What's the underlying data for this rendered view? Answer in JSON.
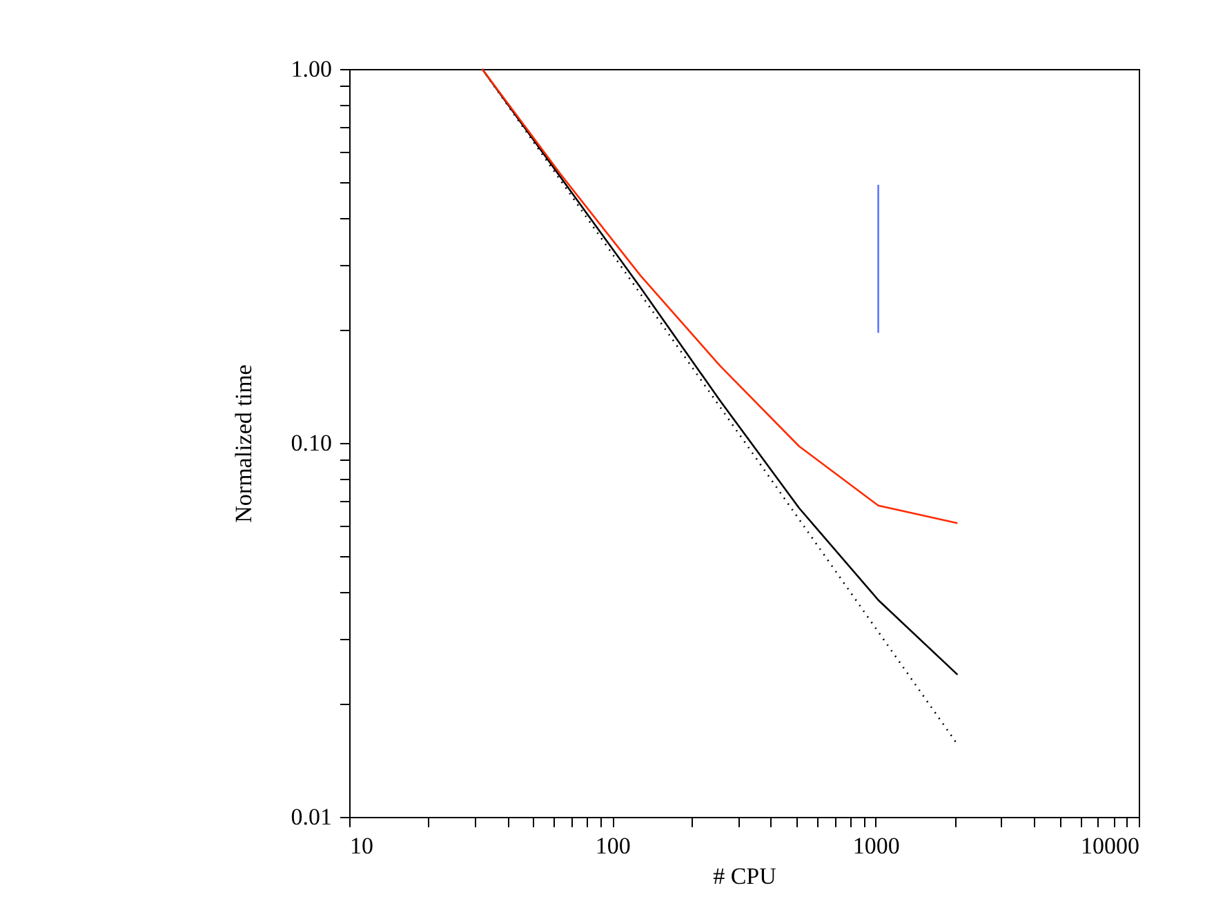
{
  "chart_data": {
    "type": "line",
    "xlabel": "# CPU",
    "ylabel": "Normalized time",
    "log": "xy",
    "grid": false,
    "marker": "none",
    "xlim": [
      10,
      10000
    ],
    "ylim": [
      0.01,
      1
    ],
    "xticks": [
      10,
      {
        "value": 20,
        "label": null
      },
      {
        "value": 30,
        "label": null
      },
      {
        "value": 40,
        "label": null
      },
      {
        "value": 50,
        "label": null
      },
      {
        "value": 60,
        "label": null
      },
      {
        "value": 70,
        "label": null
      },
      {
        "value": 80,
        "label": null
      },
      {
        "value": 90,
        "label": null
      },
      100,
      {
        "value": 200,
        "label": null
      },
      {
        "value": 300,
        "label": null
      },
      {
        "value": 400,
        "label": null
      },
      {
        "value": 500,
        "label": null
      },
      {
        "value": 600,
        "label": null
      },
      {
        "value": 700,
        "label": null
      },
      {
        "value": 800,
        "label": null
      },
      {
        "value": 900,
        "label": null
      },
      1000,
      {
        "value": 2000,
        "label": null
      },
      {
        "value": 3000,
        "label": null
      },
      {
        "value": 4000,
        "label": null
      },
      {
        "value": 5000,
        "label": null
      },
      {
        "value": 6000,
        "label": null
      },
      {
        "value": 7000,
        "label": null
      },
      {
        "value": 8000,
        "label": null
      },
      {
        "value": 9000,
        "label": null
      },
      10000
    ],
    "yticks": [
      {
        "value": 0.01,
        "label": "0.01"
      },
      {
        "value": 0.02,
        "label": null
      },
      {
        "value": 0.03,
        "label": null
      },
      {
        "value": 0.04,
        "label": null
      },
      {
        "value": 0.05,
        "label": null
      },
      {
        "value": 0.06,
        "label": null
      },
      {
        "value": 0.07,
        "label": null
      },
      {
        "value": 0.08,
        "label": null
      },
      {
        "value": 0.09,
        "label": null
      },
      {
        "value": 0.1,
        "label": "0.10"
      },
      {
        "value": 0.2,
        "label": null
      },
      {
        "value": 0.3,
        "label": null
      },
      {
        "value": 0.4,
        "label": null
      },
      {
        "value": 0.5,
        "label": null
      },
      {
        "value": 0.6,
        "label": null
      },
      {
        "value": 0.7,
        "label": null
      },
      {
        "value": 0.8,
        "label": null
      },
      {
        "value": 0.9,
        "label": null
      },
      {
        "value": 1,
        "label": "1.00"
      }
    ],
    "series": [
      {
        "color": "#000000",
        "line_style": "dotted",
        "x": [
          32,
          64,
          128,
          256,
          512,
          1024,
          2048
        ],
        "values": [
          1,
          0.5,
          0.25,
          0.125,
          0.0625,
          0.03125,
          0.015625
        ]
      },
      {
        "color": "#000000",
        "line_style": "solid",
        "x": [
          32,
          64,
          128,
          256,
          512,
          1024,
          2048
        ],
        "values": [
          1,
          0.51,
          0.26,
          0.13,
          0.067,
          0.038,
          0.024
        ]
      },
      {
        "color": "#ff2a00",
        "line_style": "solid",
        "x": [
          32,
          64,
          128,
          256,
          512,
          1024,
          2048
        ],
        "values": [
          1,
          0.52,
          0.28,
          0.161,
          0.098,
          0.068,
          0.061
        ]
      },
      {
        "color": "#5a78ff",
        "line_style": "solid",
        "x": [
          1024,
          1024
        ],
        "values": [
          0.49,
          0.197
        ]
      }
    ]
  }
}
